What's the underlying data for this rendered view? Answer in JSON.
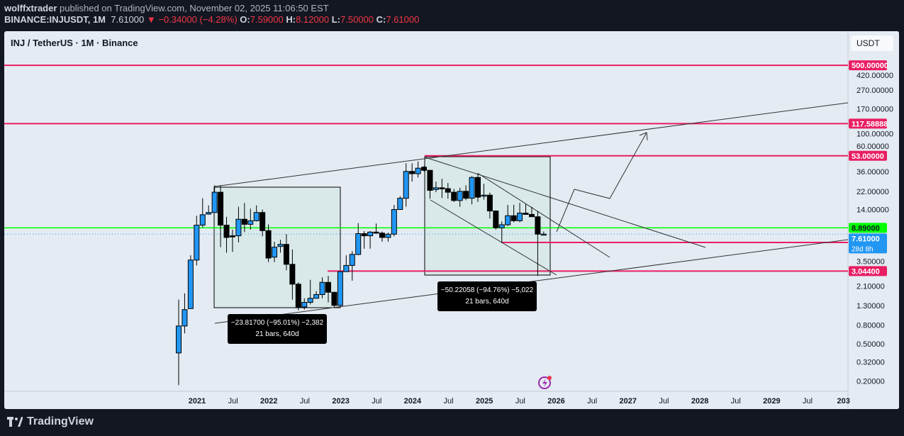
{
  "header": {
    "author": "wolffxtrader",
    "published": "published on TradingView.com, November 02, 2025 11:06:50 EST",
    "symbol": "BINANCE:INJUSDT, 1M",
    "last": "7.61000",
    "change": "▼ −0.34000 (−4.28%)",
    "o_label": "O:",
    "o": "7.59000",
    "h_label": "H:",
    "h": "8.12000",
    "l_label": "L:",
    "l": "7.50000",
    "c_label": "C:",
    "c": "7.61000"
  },
  "chart": {
    "title": "INJ / TetherUS · 1M · Binance",
    "currency": "USDT"
  },
  "footer": {
    "brand": "TradingView"
  },
  "colors": {
    "up": "#2196f3",
    "down": "#000000",
    "level": "#e91e63",
    "green": "#00ff00",
    "bg": "#e4ebf3"
  },
  "chart_data": {
    "type": "candlestick",
    "scale": "log",
    "interval": "1M",
    "y_ticks": [
      "420.00000",
      "270.00000",
      "170.00000",
      "100.00000",
      "60.00000",
      "36.00000",
      "22.00000",
      "14.00000",
      "3.50000",
      "2.10000",
      "1.30000",
      "0.80000",
      "0.50000",
      "0.32000",
      "0.20000"
    ],
    "x_ticks": [
      "2021",
      "Jul",
      "2022",
      "Jul",
      "2023",
      "Jul",
      "2024",
      "Jul",
      "2025",
      "Jul",
      "2026",
      "Jul",
      "2027",
      "Jul",
      "2028",
      "Jul",
      "2029",
      "Jul",
      "203"
    ],
    "levels": [
      {
        "label": "500.00000",
        "value": 500
      },
      {
        "label": "117.58888",
        "value": 117.58888
      },
      {
        "label": "53.00000",
        "value": 53
      },
      {
        "label": "3.04400",
        "value": 3.044
      }
    ],
    "green_level": {
      "label": "8.89000",
      "value": 8.89
    },
    "last_price": {
      "label": "7.61000",
      "countdown": "28d 8h"
    },
    "measures": [
      {
        "line1": "−23.81700 (−95.01%) −2,382",
        "line2": "21 bars, 640d"
      },
      {
        "line1": "−50.22058 (−94.76%) −5,022",
        "line2": "21 bars, 640d"
      }
    ],
    "candles": [
      [
        "2020-10",
        0.4,
        1.5,
        0.18,
        0.78
      ],
      [
        "2020-11",
        0.78,
        1.75,
        0.65,
        1.17
      ],
      [
        "2020-12",
        1.2,
        4.5,
        1.2,
        4.0
      ],
      [
        "2021-01",
        4.0,
        12,
        3.5,
        9.5
      ],
      [
        "2021-02",
        9.5,
        18.5,
        9.0,
        12.3
      ],
      [
        "2021-03",
        12.5,
        15.5,
        12.3,
        13
      ],
      [
        "2021-04",
        13,
        25.5,
        13,
        21.5
      ],
      [
        "2021-05",
        21.5,
        25.5,
        5.5,
        9.5
      ],
      [
        "2021-06",
        9.5,
        11.7,
        4.8,
        7.0
      ],
      [
        "2021-07",
        7.3,
        8.5,
        4.9,
        7.1
      ],
      [
        "2021-08",
        7.3,
        15,
        6.2,
        11
      ],
      [
        "2021-09",
        11,
        16.5,
        8.0,
        9.7
      ],
      [
        "2021-10",
        9.7,
        14.3,
        8.5,
        10.6
      ],
      [
        "2021-11",
        10.6,
        15.5,
        10.4,
        13.0
      ],
      [
        "2021-12",
        13,
        14,
        7.2,
        8.3
      ],
      [
        "2022-01",
        8.3,
        9.7,
        3.8,
        4.2
      ],
      [
        "2022-02",
        4.3,
        6.3,
        3.8,
        5.5
      ],
      [
        "2022-03",
        5.6,
        6.6,
        4.8,
        5.9
      ],
      [
        "2022-04",
        5.9,
        7.6,
        3.1,
        3.6
      ],
      [
        "2022-05",
        3.6,
        5.2,
        1.5,
        2.2
      ],
      [
        "2022-06",
        2.2,
        2.3,
        1.15,
        1.25
      ],
      [
        "2022-07",
        1.25,
        1.55,
        1.17,
        1.4
      ],
      [
        "2022-08",
        1.4,
        2.45,
        1.33,
        1.55
      ],
      [
        "2022-09",
        1.55,
        1.85,
        1.55,
        1.7
      ],
      [
        "2022-10",
        1.7,
        2.6,
        1.55,
        2.3
      ],
      [
        "2022-11",
        2.3,
        2.7,
        1.4,
        1.8
      ],
      [
        "2022-12",
        1.8,
        1.8,
        1.22,
        1.3
      ],
      [
        "2023-01",
        1.3,
        3.05,
        1.27,
        3.0
      ],
      [
        "2023-02",
        3.0,
        4.5,
        3.0,
        3.5
      ],
      [
        "2023-03",
        3.5,
        5.0,
        2.4,
        4.6
      ],
      [
        "2023-04",
        4.6,
        10.0,
        4.5,
        7.7
      ],
      [
        "2023-05",
        7.7,
        8.2,
        5.3,
        7.3
      ],
      [
        "2023-06",
        7.3,
        8.2,
        5.3,
        8.0
      ],
      [
        "2023-07",
        8.0,
        9.9,
        7.9,
        7.8
      ],
      [
        "2023-08",
        7.8,
        8.1,
        6.3,
        7.0
      ],
      [
        "2023-09",
        7.0,
        7.9,
        6.3,
        7.6
      ],
      [
        "2023-10",
        7.6,
        15.7,
        7.2,
        14
      ],
      [
        "2023-11",
        14,
        19.5,
        14,
        18.5
      ],
      [
        "2023-12",
        18.5,
        44,
        15,
        36
      ],
      [
        "2024-01",
        36,
        44,
        28,
        34
      ],
      [
        "2024-02",
        34,
        46,
        31,
        39
      ],
      [
        "2024-03",
        40,
        41,
        36,
        37
      ],
      [
        "2024-04",
        37,
        37,
        18.3,
        22.5
      ],
      [
        "2024-05",
        23,
        28,
        21.5,
        24
      ],
      [
        "2024-06",
        24,
        30,
        18.6,
        23.5
      ],
      [
        "2024-07",
        23.5,
        27,
        18.3,
        21.5
      ],
      [
        "2024-08",
        21.5,
        23.3,
        16.9,
        17.5
      ],
      [
        "2024-09",
        17.5,
        24,
        15,
        22
      ],
      [
        "2024-10",
        22,
        25.5,
        17.6,
        18.5
      ],
      [
        "2024-11",
        18.5,
        32,
        15.9,
        31
      ],
      [
        "2024-12",
        31,
        34.5,
        16.9,
        19
      ],
      [
        "2025-01",
        19.5,
        26.5,
        17.9,
        20
      ],
      [
        "2025-02",
        20,
        21.3,
        11.2,
        13.5
      ],
      [
        "2025-03",
        13.5,
        13.7,
        8.5,
        8.9
      ],
      [
        "2025-04",
        8.9,
        10.4,
        6.1,
        9.6
      ],
      [
        "2025-05",
        9.6,
        15.7,
        9.3,
        12.0
      ],
      [
        "2025-06",
        12,
        15.7,
        10.2,
        10.6
      ],
      [
        "2025-07",
        10.6,
        16.5,
        10.2,
        12.8
      ],
      [
        "2025-08",
        12.8,
        16,
        12.3,
        12.4
      ],
      [
        "2025-09",
        12.4,
        15,
        12,
        11.7
      ],
      [
        "2025-10",
        11.7,
        13.5,
        2.7,
        7.6
      ],
      [
        "2025-11",
        7.59,
        8.12,
        7.5,
        7.61
      ]
    ]
  }
}
